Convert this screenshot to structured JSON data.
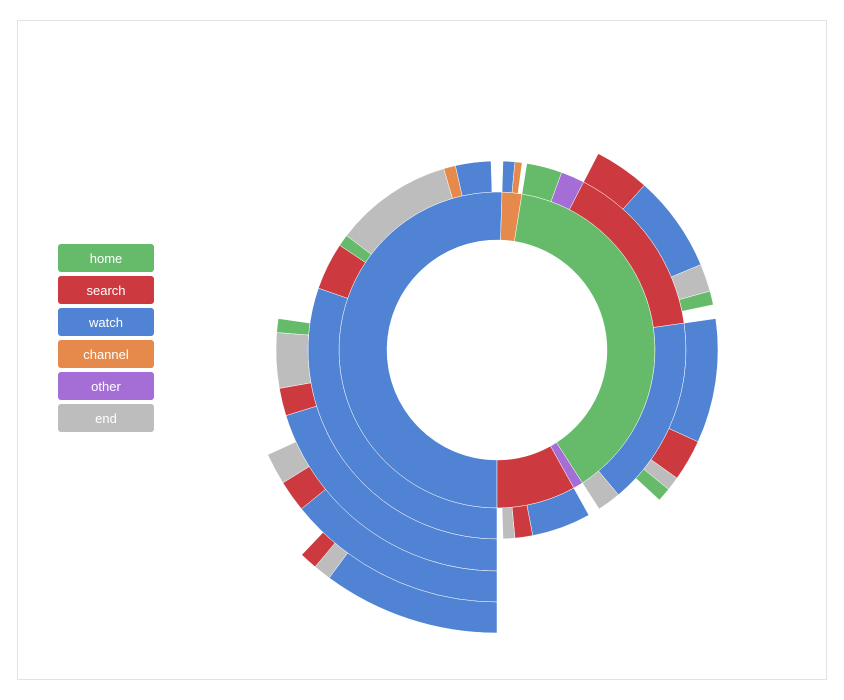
{
  "chart_data": {
    "type": "sunburst",
    "title": "",
    "legend": [
      {
        "name": "home",
        "color": "#66bb6a"
      },
      {
        "name": "search",
        "color": "#cc3a3f"
      },
      {
        "name": "watch",
        "color": "#5083d3"
      },
      {
        "name": "channel",
        "color": "#e58a4b"
      },
      {
        "name": "other",
        "color": "#a46ed6"
      },
      {
        "name": "end",
        "color": "#bdbdbd"
      }
    ],
    "legend_position": "left",
    "hierarchy": [
      {
        "name": "watch",
        "value": 50,
        "children": [
          {
            "name": "watch",
            "value": 30,
            "children": [
              {
                "name": "watch",
                "value": 20,
                "children": [
                  {
                    "name": "watch",
                    "value": 14,
                    "children": [
                      {
                        "name": "watch",
                        "value": 10
                      },
                      {
                        "name": "end",
                        "value": 1
                      },
                      {
                        "name": "search",
                        "value": 1
                      }
                    ]
                  },
                  {
                    "name": "search",
                    "value": 2
                  },
                  {
                    "name": "end",
                    "value": 2
                  }
                ]
              },
              {
                "name": "search",
                "value": 2
              },
              {
                "name": "end",
                "value": 4
              },
              {
                "name": "home",
                "value": 1
              }
            ]
          },
          {
            "name": "search",
            "value": 4
          },
          {
            "name": "home",
            "value": 1
          },
          {
            "name": "end",
            "value": 10
          },
          {
            "name": "channel",
            "value": 1
          },
          {
            "name": "watch",
            "value": 3
          }
        ]
      },
      {
        "name": "channel",
        "value": 2,
        "children": [
          {
            "name": "watch",
            "value": 1
          },
          {
            "name": "channel",
            "value": 0.6
          }
        ]
      },
      {
        "name": "home",
        "value": 38,
        "children": [
          {
            "name": "home",
            "value": 3
          },
          {
            "name": "other",
            "value": 2
          },
          {
            "name": "search",
            "value": 15,
            "children": [
              {
                "name": "search",
                "value": 4
              },
              {
                "name": "watch",
                "value": 7
              },
              {
                "name": "end",
                "value": 2
              },
              {
                "name": "home",
                "value": 1
              }
            ]
          },
          {
            "name": "watch",
            "value": 16,
            "children": [
              {
                "name": "watch",
                "value": 9
              },
              {
                "name": "search",
                "value": 3
              },
              {
                "name": "end",
                "value": 1
              },
              {
                "name": "home",
                "value": 1
              }
            ]
          },
          {
            "name": "end",
            "value": 2
          }
        ]
      },
      {
        "name": "other",
        "value": 1
      },
      {
        "name": "search",
        "value": 8,
        "children": [
          {
            "name": "watch",
            "value": 5
          },
          {
            "name": "search",
            "value": 1.5
          },
          {
            "name": "end",
            "value": 1
          }
        ]
      }
    ]
  }
}
